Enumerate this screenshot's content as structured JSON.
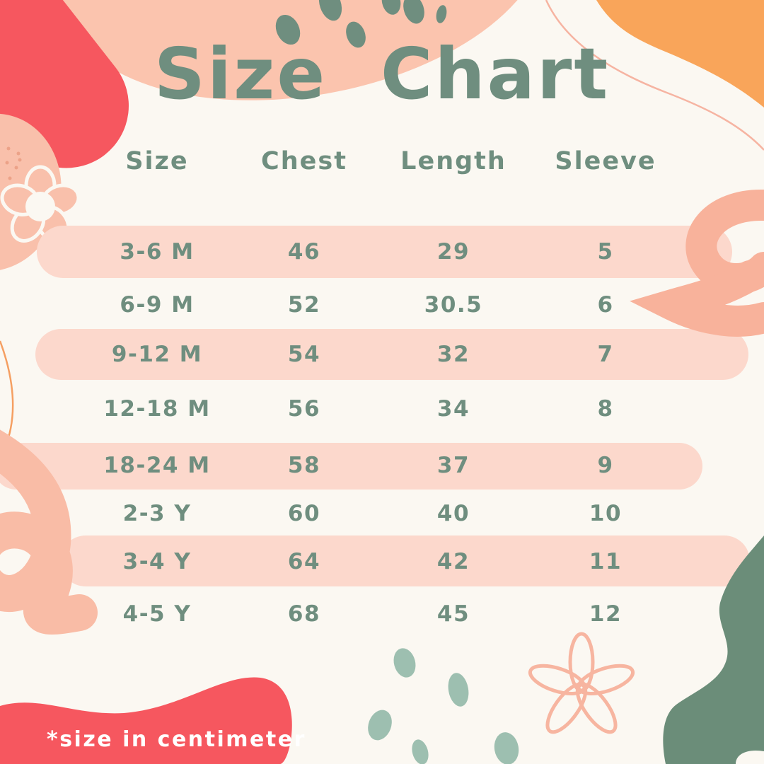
{
  "title": "Size Chart",
  "footnote": "*size in centimeter",
  "table": {
    "columns": [
      "Size",
      "Chest",
      "Length",
      "Sleeve"
    ],
    "rows": [
      {
        "size": "3-6 M",
        "chest": "46",
        "length": "29",
        "sleeve": "5",
        "highlighted": true
      },
      {
        "size": "6-9 M",
        "chest": "52",
        "length": "30.5",
        "sleeve": "6",
        "highlighted": false
      },
      {
        "size": "9-12 M",
        "chest": "54",
        "length": "32",
        "sleeve": "7",
        "highlighted": true
      },
      {
        "size": "12-18 M",
        "chest": "56",
        "length": "34",
        "sleeve": "8",
        "highlighted": false
      },
      {
        "size": "18-24 M",
        "chest": "58",
        "length": "37",
        "sleeve": "9",
        "highlighted": true
      },
      {
        "size": "2-3 Y",
        "chest": "60",
        "length": "40",
        "sleeve": "10",
        "highlighted": false
      },
      {
        "size": "3-4 Y",
        "chest": "64",
        "length": "42",
        "sleeve": "11",
        "highlighted": true
      },
      {
        "size": "4-5 Y",
        "chest": "68",
        "length": "45",
        "sleeve": "12",
        "highlighted": false
      }
    ]
  },
  "chart_data": {
    "type": "table",
    "title": "Size Chart",
    "columns": [
      "Size",
      "Chest",
      "Length",
      "Sleeve"
    ],
    "rows": [
      [
        "3-6 M",
        46,
        29,
        5
      ],
      [
        "6-9 M",
        52,
        30.5,
        6
      ],
      [
        "9-12 M",
        54,
        32,
        7
      ],
      [
        "12-18 M",
        56,
        34,
        8
      ],
      [
        "18-24 M",
        58,
        37,
        9
      ],
      [
        "2-3 Y",
        60,
        40,
        10
      ],
      [
        "3-4 Y",
        64,
        42,
        11
      ],
      [
        "4-5 Y",
        68,
        45,
        12
      ]
    ],
    "unit_note": "*size in centimeter"
  },
  "colors": {
    "background": "#fbf8f2",
    "text_green": "#6f8e7f",
    "row_highlight_pink": "#fcd8cc",
    "coral_red": "#f6575f",
    "orange": "#f9a55a",
    "peach": "#f9c0ab",
    "peach_dark": "#f8b29b",
    "teal_seed": "#9dbfb0",
    "dark_green_blob": "#6b8d79",
    "thin_line_salmon": "#f6b4a2",
    "thin_line_orange": "#f59f62",
    "footnote_text": "#ffffff"
  },
  "decorations": [
    "red-pill-blob-top-left",
    "peach-blob-top",
    "orange-blob-top-right",
    "salmon-line-top-right",
    "leaf-seeds-top",
    "peach-blob-left",
    "flower-left",
    "orange-arc-left",
    "peach-swirl-right",
    "peach-loop-doodle-left",
    "red-blob-bottom-left",
    "teal-seeds-bottom",
    "flower-doodle-bottom-right",
    "green-blob-bottom-right"
  ]
}
